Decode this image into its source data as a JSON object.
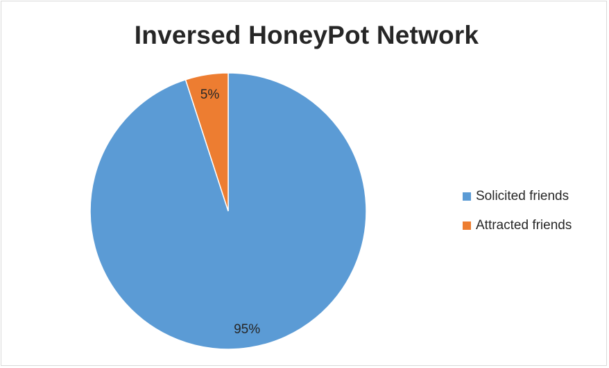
{
  "chart_data": {
    "type": "pie",
    "title": "Inversed HoneyPot Network",
    "categories": [
      "Solicited friends",
      "Attracted friends"
    ],
    "values": [
      95,
      5
    ],
    "data_labels": [
      "95%",
      "5%"
    ],
    "colors": [
      "#5b9bd5",
      "#ed7d31"
    ],
    "legend_position": "right"
  }
}
